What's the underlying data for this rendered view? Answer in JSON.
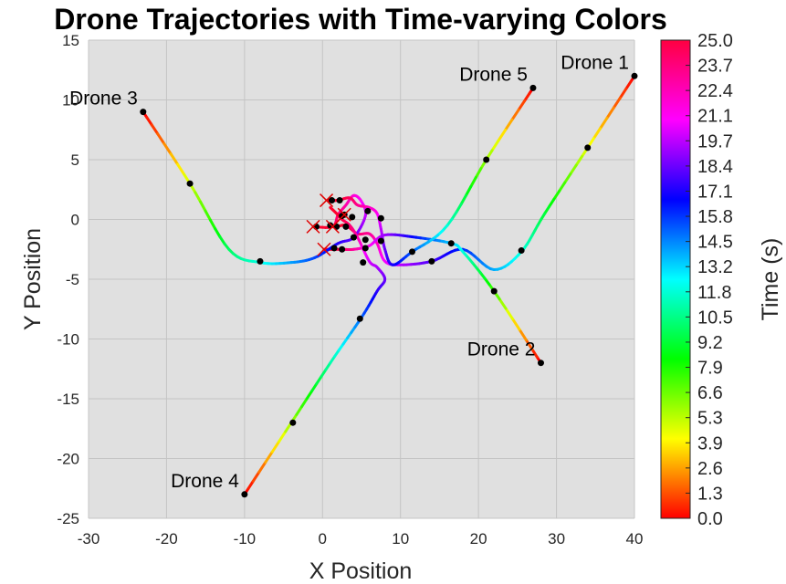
{
  "chart_data": {
    "type": "line",
    "title": "Drone Trajectories with Time-varying Colors",
    "xlabel": "X Position",
    "ylabel": "Y Position",
    "xlim": [
      -30,
      40
    ],
    "ylim": [
      -25,
      15
    ],
    "x_ticks": [
      "-30",
      "-20",
      "-10",
      "0",
      "10",
      "20",
      "30",
      "40"
    ],
    "y_ticks": [
      "-25",
      "-20",
      "-15",
      "-10",
      "-5",
      "0",
      "5",
      "10",
      "15"
    ],
    "grid": true,
    "plot_background": "#e0e0e0",
    "colormap": "hsv",
    "colorbar": {
      "label": "Time (s)",
      "range": [
        0,
        25
      ],
      "ticks": [
        "0.0",
        "1.3",
        "2.6",
        "3.9",
        "5.3",
        "6.6",
        "7.9",
        "9.2",
        "10.5",
        "11.8",
        "13.2",
        "14.5",
        "15.8",
        "17.1",
        "18.4",
        "19.7",
        "21.1",
        "22.4",
        "23.7",
        "25.0"
      ]
    },
    "series": [
      {
        "name": "Drone 1",
        "points": [
          [
            40,
            12
          ],
          [
            34,
            6
          ],
          [
            28.5,
            0.5
          ],
          [
            25.5,
            -2.7
          ],
          [
            22,
            -4.2
          ],
          [
            18,
            -2.5
          ],
          [
            14,
            -3.5
          ],
          [
            10,
            -3.8
          ],
          [
            8,
            -3.5
          ],
          [
            7,
            -2
          ],
          [
            6,
            -1.2
          ],
          [
            4.5,
            -1.2
          ],
          [
            3,
            -0.5
          ],
          [
            1.8,
            -0.6
          ],
          [
            0.8,
            -0.6
          ]
        ],
        "markers": [
          [
            40,
            12
          ],
          [
            34,
            6
          ],
          [
            25.5,
            -2.6
          ],
          [
            14,
            -3.5
          ],
          [
            7.5,
            -1.8
          ],
          [
            5.5,
            -1.7
          ],
          [
            3,
            -0.6
          ],
          [
            1.8,
            -0.6
          ]
        ]
      },
      {
        "name": "Drone 2",
        "points": [
          [
            28,
            -12
          ],
          [
            22,
            -6
          ],
          [
            18,
            -2.7
          ],
          [
            16.5,
            -2
          ],
          [
            12,
            -1.5
          ],
          [
            8,
            -1.3
          ],
          [
            6,
            -2.2
          ],
          [
            4,
            -2.5
          ],
          [
            2.5,
            -2.5
          ],
          [
            1,
            -2.5
          ],
          [
            0.2,
            -2.5
          ]
        ],
        "markers": [
          [
            28,
            -12
          ],
          [
            22,
            -6
          ],
          [
            16.5,
            -2
          ],
          [
            5.5,
            -2.4
          ],
          [
            2.5,
            -2.5
          ],
          [
            1.5,
            -2.4
          ]
        ]
      },
      {
        "name": "Drone 3",
        "points": [
          [
            -23,
            9
          ],
          [
            -17,
            3
          ],
          [
            -12,
            -2.5
          ],
          [
            -8,
            -3.6
          ],
          [
            -4,
            -3.6
          ],
          [
            -1,
            -3.2
          ],
          [
            2,
            -2
          ],
          [
            4,
            -1.5
          ],
          [
            5.5,
            0.3
          ],
          [
            5,
            1.5
          ],
          [
            4,
            2
          ],
          [
            3,
            1.2
          ],
          [
            2,
            0.4
          ],
          [
            1.3,
            -0.6
          ],
          [
            -1.2,
            -0.6
          ]
        ],
        "markers": [
          [
            -23,
            9
          ],
          [
            -17,
            3
          ],
          [
            -8,
            -3.5
          ],
          [
            4,
            -1.5
          ],
          [
            2.5,
            0.3
          ],
          [
            1,
            -0.5
          ],
          [
            -0.8,
            -0.6
          ]
        ]
      },
      {
        "name": "Drone 4",
        "points": [
          [
            -10,
            -23
          ],
          [
            -4,
            -17
          ],
          [
            1,
            -12
          ],
          [
            5,
            -8.2
          ],
          [
            7,
            -6
          ],
          [
            8,
            -5
          ],
          [
            7,
            -4
          ],
          [
            6,
            -3.5
          ],
          [
            4.5,
            -1.5
          ],
          [
            3.5,
            -0.5
          ],
          [
            2.5,
            0
          ],
          [
            1.8,
            0.5
          ],
          [
            1,
            1
          ]
        ],
        "markers": [
          [
            -10,
            -23
          ],
          [
            -3.8,
            -17
          ],
          [
            4.8,
            -8.3
          ],
          [
            5.2,
            -3.6
          ],
          [
            2.8,
            0.4
          ]
        ]
      },
      {
        "name": "Drone 5",
        "points": [
          [
            27,
            11
          ],
          [
            21,
            5
          ],
          [
            16,
            -0.5
          ],
          [
            11.5,
            -2.7
          ],
          [
            9,
            -3.8
          ],
          [
            8,
            -2.5
          ],
          [
            7.5,
            -0.8
          ],
          [
            7,
            0.5
          ],
          [
            6,
            1
          ],
          [
            4.5,
            1.2
          ],
          [
            3.5,
            1.8
          ],
          [
            2,
            1.6
          ],
          [
            0.8,
            1.6
          ]
        ],
        "markers": [
          [
            27,
            11
          ],
          [
            21,
            5
          ],
          [
            11.5,
            -2.7
          ],
          [
            7.5,
            0.1
          ],
          [
            5.8,
            0.7
          ],
          [
            3.8,
            0.2
          ],
          [
            2.2,
            1.6
          ],
          [
            1.2,
            1.6
          ]
        ]
      }
    ],
    "crosses": [
      [
        0.5,
        1.6
      ],
      [
        -1.2,
        -0.6
      ],
      [
        0.2,
        -2.5
      ],
      [
        2.8,
        0.4
      ],
      [
        1.3,
        -0.6
      ]
    ],
    "annotations": [
      {
        "text": "Drone 1",
        "x": 40,
        "y": 12
      },
      {
        "text": "Drone 2",
        "x": 28,
        "y": -12
      },
      {
        "text": "Drone 3",
        "x": -23,
        "y": 9
      },
      {
        "text": "Drone 4",
        "x": -10,
        "y": -23
      },
      {
        "text": "Drone 5",
        "x": 27,
        "y": 11
      }
    ]
  }
}
